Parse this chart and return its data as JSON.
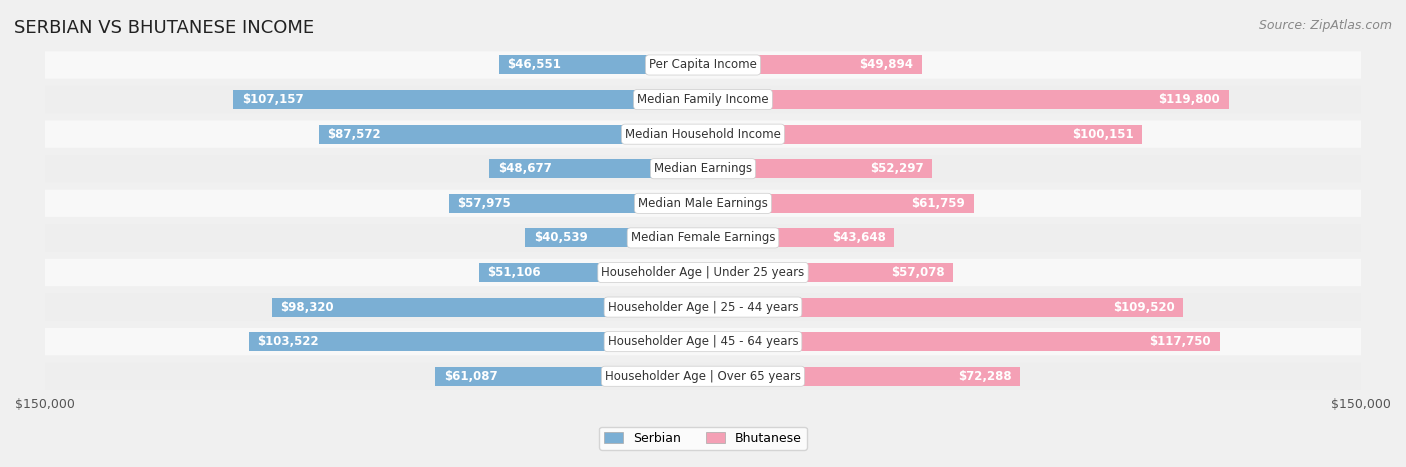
{
  "title": "SERBIAN VS BHUTANESE INCOME",
  "source": "Source: ZipAtlas.com",
  "categories": [
    "Per Capita Income",
    "Median Family Income",
    "Median Household Income",
    "Median Earnings",
    "Median Male Earnings",
    "Median Female Earnings",
    "Householder Age | Under 25 years",
    "Householder Age | 25 - 44 years",
    "Householder Age | 45 - 64 years",
    "Householder Age | Over 65 years"
  ],
  "serbian_values": [
    46551,
    107157,
    87572,
    48677,
    57975,
    40539,
    51106,
    98320,
    103522,
    61087
  ],
  "bhutanese_values": [
    49894,
    119800,
    100151,
    52297,
    61759,
    43648,
    57078,
    109520,
    117750,
    72288
  ],
  "serbian_labels": [
    "$46,551",
    "$107,157",
    "$87,572",
    "$48,677",
    "$57,975",
    "$40,539",
    "$51,106",
    "$98,320",
    "$103,522",
    "$61,087"
  ],
  "bhutanese_labels": [
    "$49,894",
    "$119,800",
    "$100,151",
    "$52,297",
    "$61,759",
    "$43,648",
    "$57,078",
    "$109,520",
    "$117,750",
    "$72,288"
  ],
  "serbian_color": "#7bafd4",
  "serbian_color_dark": "#5b9dc8",
  "bhutanese_color": "#f4a0b5",
  "bhutanese_color_dark": "#f07090",
  "max_value": 150000,
  "bg_color": "#f0f0f0",
  "row_bg_light": "#f8f8f8",
  "row_bg_alt": "#eeeeee",
  "label_box_color": "#ffffff",
  "title_fontsize": 13,
  "source_fontsize": 9,
  "bar_label_fontsize": 8.5,
  "category_fontsize": 8.5,
  "axis_label_fontsize": 9
}
